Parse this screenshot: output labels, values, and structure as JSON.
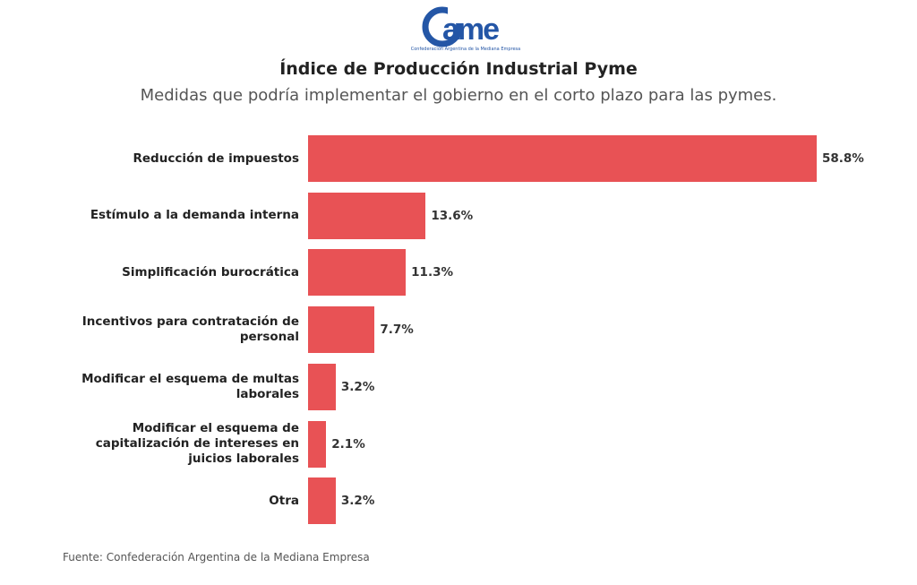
{
  "logo": {
    "text": "came",
    "subtitle": "Confederación Argentina de la Mediana Empresa",
    "color": "#2456a6"
  },
  "chart_data": {
    "type": "bar",
    "orientation": "horizontal",
    "title": "Índice de Producción Industrial Pyme",
    "subtitle": "Medidas que podría implementar el gobierno en el corto plazo para las pymes.",
    "categories": [
      "Reducción de impuestos",
      "Estímulo a la demanda interna",
      "Simplificación burocrática",
      "Incentivos para contratación de personal",
      "Modificar el esquema de multas laborales",
      "Modificar el esquema de capitalización de intereses en juicios laborales",
      "Otra"
    ],
    "values": [
      58.8,
      13.6,
      11.3,
      7.7,
      3.2,
      2.1,
      3.2
    ],
    "data_labels": [
      "58.8%",
      "13.6%",
      "11.3%",
      "7.7%",
      "3.2%",
      "2.1%",
      "3.2%"
    ],
    "unit": "%",
    "bar_color": "#e85255",
    "grid": false
  },
  "source": "Fuente: Confederación Argentina de la Mediana Empresa"
}
